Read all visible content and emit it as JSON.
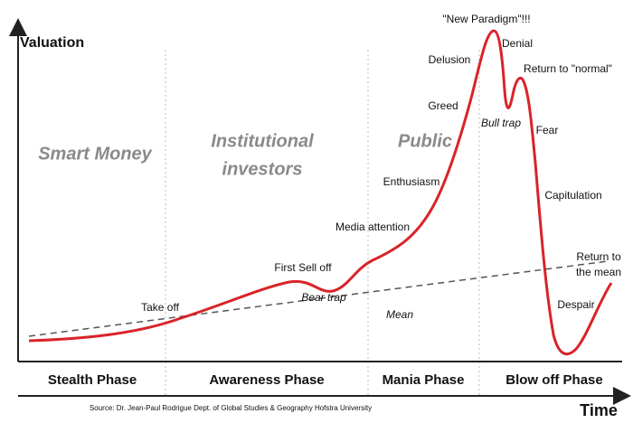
{
  "axes": {
    "y_label": "Valuation",
    "x_label": "Time"
  },
  "groups": {
    "smart_money": "Smart Money",
    "institutional": [
      "Institutional",
      "investors"
    ],
    "public": "Public"
  },
  "annotations": {
    "take_off": "Take off",
    "first_sell_off": "First Sell off",
    "bear_trap": "Bear trap",
    "media_attention": "Media attention",
    "enthusiasm": "Enthusiasm",
    "greed": "Greed",
    "delusion": "Delusion",
    "new_paradigm": "\"New Paradigm\"!!!",
    "denial": "Denial",
    "return_to_normal": "Return to \"normal\"",
    "bull_trap": "Bull trap",
    "fear": "Fear",
    "capitulation": "Capitulation",
    "return_to_mean": [
      "Return to",
      "the mean"
    ],
    "despair": "Despair",
    "mean": "Mean"
  },
  "phases": [
    "Stealth Phase",
    "Awareness Phase",
    "Mania Phase",
    "Blow off Phase"
  ],
  "source": "Source: Dr. Jean-Paul Rodrigue Dept. of Global Studies & Geography Hofstra University"
}
